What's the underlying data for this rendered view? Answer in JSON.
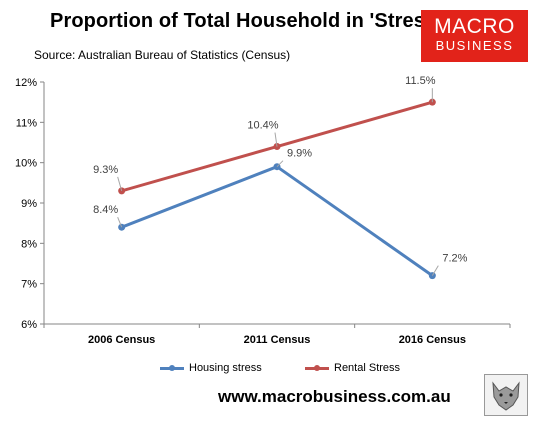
{
  "header": {
    "title": "Proportion of Total Household in 'Stress'",
    "subtitle": "Source: Australian Bureau of Statistics (Census)"
  },
  "logo": {
    "line1": "MACRO",
    "line2": "BUSINESS",
    "color": "#e2231a"
  },
  "footer": {
    "url": "www.macrobusiness.com.au"
  },
  "chart_data": {
    "type": "line",
    "categories": [
      "2006 Census",
      "2011 Census",
      "2016 Census"
    ],
    "series": [
      {
        "name": "Housing stress",
        "values": [
          8.4,
          9.9,
          7.2
        ],
        "labels": [
          "8.4%",
          "9.9%",
          "7.2%"
        ],
        "color": "#4f81bd"
      },
      {
        "name": "Rental Stress",
        "values": [
          9.3,
          10.4,
          11.5
        ],
        "labels": [
          "9.3%",
          "10.4%",
          "11.5%"
        ],
        "color": "#c0504d"
      }
    ],
    "ylim": [
      6,
      12
    ],
    "yticks": [
      6,
      7,
      8,
      9,
      10,
      11,
      12
    ],
    "ytick_labels": [
      "6%",
      "7%",
      "8%",
      "9%",
      "10%",
      "11%",
      "12%"
    ],
    "grid": false,
    "legend": "bottom"
  }
}
